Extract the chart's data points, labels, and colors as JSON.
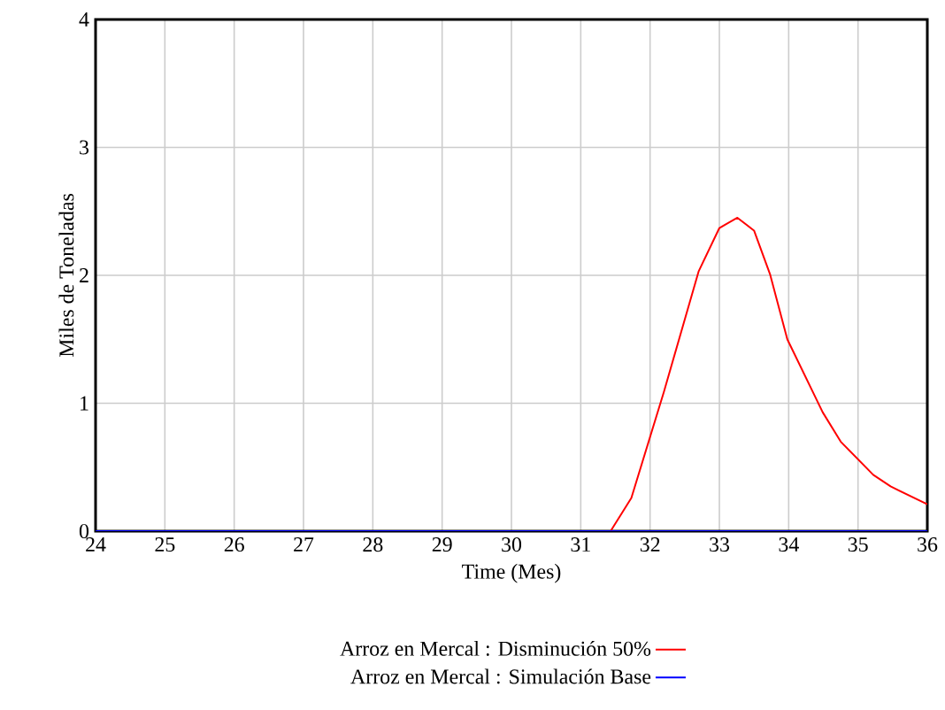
{
  "chart_data": {
    "type": "line",
    "xlabel": "Time (Mes)",
    "ylabel": "Miles de Toneladas",
    "xlim": [
      24,
      36
    ],
    "xticks": [
      24,
      25,
      26,
      27,
      28,
      29,
      30,
      31,
      32,
      33,
      34,
      35,
      36
    ],
    "ylim": [
      0,
      4
    ],
    "yticks": [
      0,
      1,
      2,
      3,
      4
    ],
    "grid": true,
    "legend": "bottom",
    "line_style": "solid",
    "series": [
      {
        "name": "Arroz en Mercal : Disminución 50%",
        "color": "#ff0000",
        "x": [
          24,
          31.43,
          31.73,
          32.2,
          32.7,
          33.0,
          33.26,
          33.5,
          33.73,
          33.98,
          34.49,
          34.75,
          35.22,
          35.47,
          36
        ],
        "values": [
          0,
          0,
          0.26,
          1.09,
          2.03,
          2.37,
          2.45,
          2.35,
          2.01,
          1.5,
          0.93,
          0.7,
          0.44,
          0.35,
          0.21
        ]
      },
      {
        "name": "Arroz en Mercal : Simulación Base",
        "color": "#0000ff",
        "x": [
          24,
          36
        ],
        "values": [
          0,
          0
        ]
      }
    ]
  }
}
